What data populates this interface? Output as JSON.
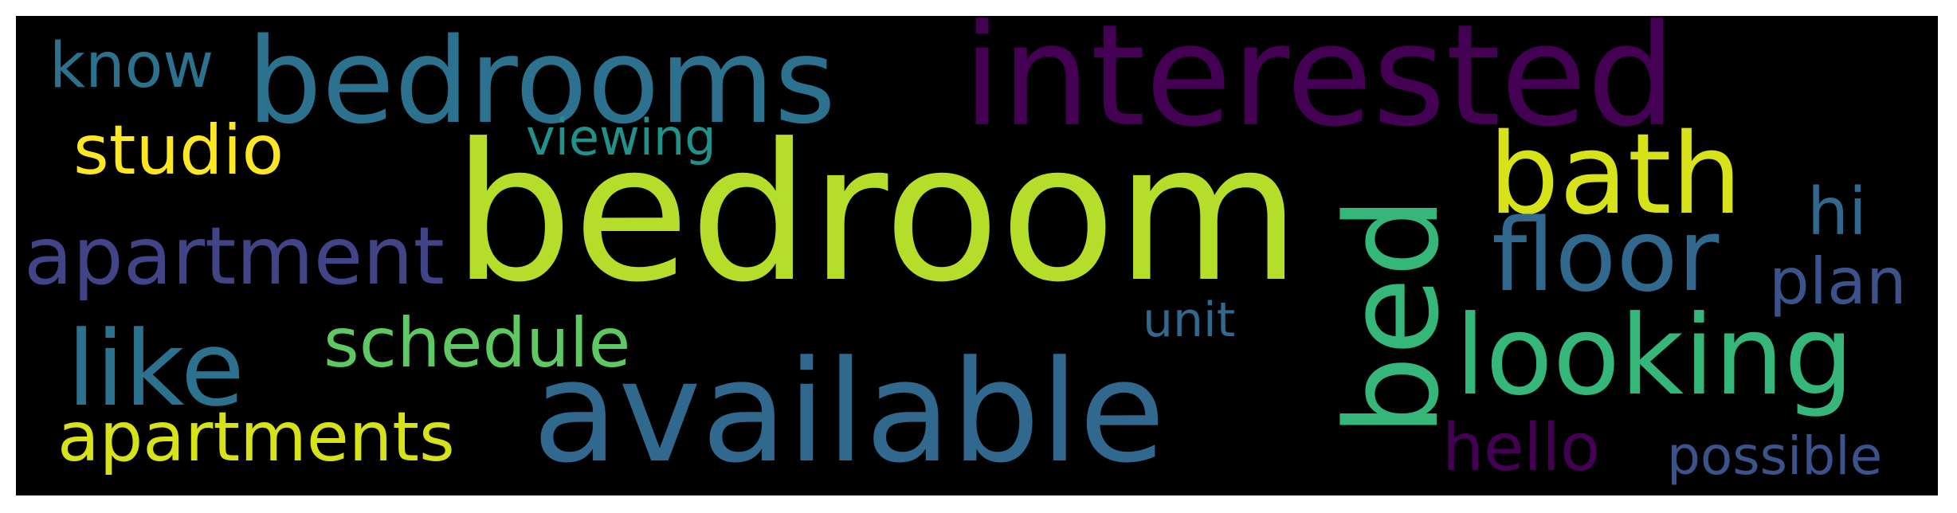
{
  "word_cloud": {
    "words": {
      "bedroom": {
        "text": "bedroom",
        "color": "#b5de2b"
      },
      "interested": {
        "text": "interested",
        "color": "#440154"
      },
      "available": {
        "text": "available",
        "color": "#31688e"
      },
      "bedrooms": {
        "text": "bedrooms",
        "color": "#2c728e"
      },
      "bed": {
        "text": "bed",
        "color": "#35b779"
      },
      "bath": {
        "text": "bath",
        "color": "#d8e219"
      },
      "floor": {
        "text": "floor",
        "color": "#31688e"
      },
      "looking": {
        "text": "looking",
        "color": "#35b779"
      },
      "apartment": {
        "text": "apartment",
        "color": "#414487"
      },
      "like": {
        "text": "like",
        "color": "#2c728e"
      },
      "apartments": {
        "text": "apartments",
        "color": "#d8e219"
      },
      "studio": {
        "text": "studio",
        "color": "#fde725"
      },
      "know": {
        "text": "know",
        "color": "#2c728e"
      },
      "schedule": {
        "text": "schedule",
        "color": "#5ec962"
      },
      "viewing": {
        "text": "viewing",
        "color": "#21918c"
      },
      "hello": {
        "text": "hello",
        "color": "#440154"
      },
      "possible": {
        "text": "possible",
        "color": "#3b528b"
      },
      "plan": {
        "text": "plan",
        "color": "#3b528b"
      },
      "hi": {
        "text": "hi",
        "color": "#31688e"
      },
      "unit": {
        "text": "unit",
        "color": "#31688e"
      }
    }
  }
}
